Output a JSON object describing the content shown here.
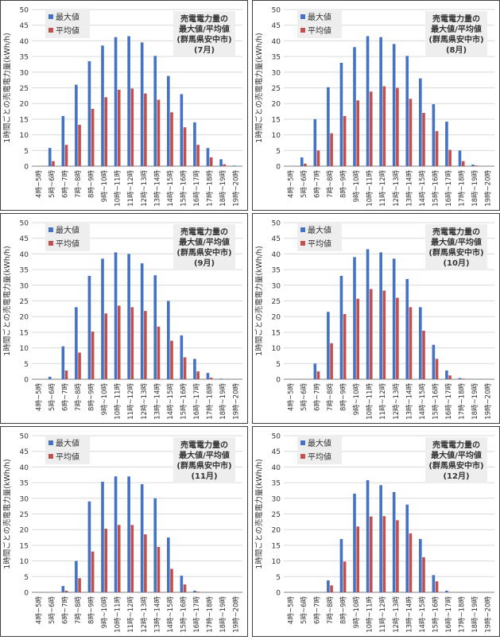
{
  "colors": {
    "max": "#4472C4",
    "avg": "#C0504D",
    "grid": "#d9d9d9",
    "axis": "#808080",
    "text": "#333333",
    "box": "#eeeeee"
  },
  "ylabel": "1時間ごとの売電電力量(kWh/h)",
  "ylim": [
    0,
    50
  ],
  "yticks": [
    0,
    5,
    10,
    15,
    20,
    25,
    30,
    35,
    40,
    45,
    50
  ],
  "categories": [
    "4時~5時",
    "5時~6時",
    "6時~7時",
    "7時~8時",
    "8時~9時",
    "9時~10時",
    "10時~11時",
    "11時~12時",
    "12時~13時",
    "13時~14時",
    "14時~15時",
    "15時~16時",
    "16時~17時",
    "17時~18時",
    "18時~19時",
    "19時~20時"
  ],
  "legend": {
    "max": "最大値",
    "avg": "平均値"
  },
  "chart_data": [
    {
      "type": "bar",
      "title_lines": [
        "売電電力量の",
        "最大値/平均値",
        "(群馬県安中市)",
        "(7月)"
      ],
      "series": [
        {
          "name": "最大値",
          "values": [
            0,
            5.8,
            16,
            26,
            33.5,
            38.5,
            41.2,
            41.5,
            39.5,
            35.2,
            28.8,
            23,
            14,
            5.8,
            2.2,
            0.2
          ]
        },
        {
          "name": "平均値",
          "values": [
            0,
            1.6,
            6.8,
            13.2,
            18.3,
            22,
            24.4,
            24.8,
            23.2,
            21.2,
            17.2,
            12.4,
            6.8,
            2.8,
            0.6,
            0
          ]
        }
      ]
    },
    {
      "type": "bar",
      "title_lines": [
        "売電電力量の",
        "最大値/平均値",
        "(群馬県安中市)",
        "(8月)"
      ],
      "series": [
        {
          "name": "最大値",
          "values": [
            0,
            2.8,
            15,
            25.2,
            33,
            38,
            41.5,
            41.2,
            39,
            35.2,
            28,
            19.8,
            14.2,
            5,
            0.5,
            0
          ]
        },
        {
          "name": "平均値",
          "values": [
            0,
            0.8,
            5,
            10.5,
            16,
            21,
            23.8,
            25.5,
            25,
            21.5,
            17,
            11.2,
            5.2,
            1.6,
            0.2,
            0
          ]
        }
      ]
    },
    {
      "type": "bar",
      "title_lines": [
        "売電電力量の",
        "最大値/平均値",
        "(群馬県安中市)",
        "(9月)"
      ],
      "series": [
        {
          "name": "最大値",
          "values": [
            0,
            0.8,
            10.5,
            23,
            33,
            38.5,
            40.5,
            40,
            37,
            33.2,
            25,
            14,
            6.5,
            2,
            0.2,
            0
          ]
        },
        {
          "name": "平均値",
          "values": [
            0,
            0,
            2.8,
            8.5,
            15.2,
            21,
            23.5,
            23,
            21.8,
            16.8,
            12.3,
            7,
            2.5,
            0.5,
            0,
            0
          ]
        }
      ]
    },
    {
      "type": "bar",
      "title_lines": [
        "売電電力量の",
        "最大値/平均値",
        "(群馬県安中市)",
        "(10月)"
      ],
      "series": [
        {
          "name": "最大値",
          "values": [
            0,
            0,
            5,
            21.5,
            33,
            39,
            41.5,
            40.5,
            38.5,
            32,
            23,
            11,
            2.8,
            0.4,
            0,
            0
          ]
        },
        {
          "name": "平均値",
          "values": [
            0,
            0,
            2.5,
            11.5,
            20.8,
            25.7,
            28.8,
            28.3,
            26,
            23,
            15.5,
            6.5,
            1.2,
            0.2,
            0,
            0
          ]
        }
      ]
    },
    {
      "type": "bar",
      "title_lines": [
        "売電電力量の",
        "最大値/平均値",
        "(群馬県安中市)",
        "(11月)"
      ],
      "series": [
        {
          "name": "最大値",
          "values": [
            0,
            0,
            2,
            10,
            29,
            35.3,
            37,
            37,
            34.5,
            30,
            17.5,
            5.3,
            0.5,
            0,
            0,
            0
          ]
        },
        {
          "name": "平均値",
          "values": [
            0,
            0,
            0.5,
            4.5,
            13,
            20.3,
            21.5,
            21.5,
            18.5,
            14.5,
            7.5,
            2.5,
            0.2,
            0,
            0,
            0
          ]
        }
      ]
    },
    {
      "type": "bar",
      "title_lines": [
        "売電電力量の",
        "最大値/平均値",
        "(群馬県安中市)",
        "(12月)"
      ],
      "series": [
        {
          "name": "最大値",
          "values": [
            0,
            0,
            0,
            3.8,
            17,
            31.5,
            35.8,
            34.2,
            32,
            28,
            17,
            5.5,
            0.5,
            0,
            0,
            0
          ]
        },
        {
          "name": "平均値",
          "values": [
            0,
            0,
            0,
            2.2,
            9.8,
            21,
            24.2,
            24.3,
            23,
            18.8,
            11.2,
            3.5,
            0,
            0,
            0,
            0
          ]
        }
      ]
    }
  ]
}
